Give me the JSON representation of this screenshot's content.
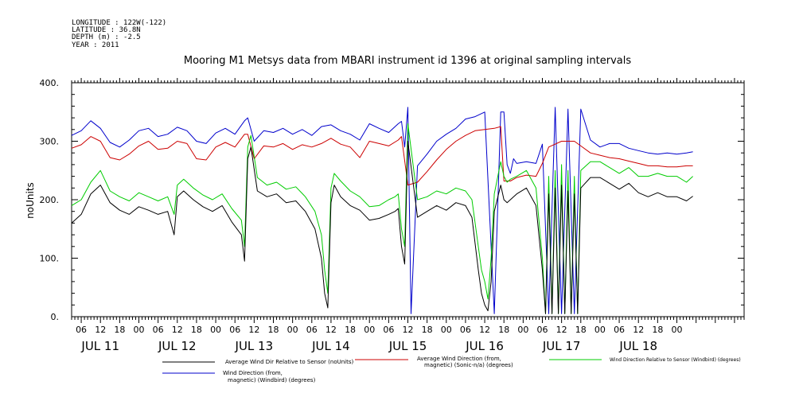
{
  "header": {
    "meta": [
      "LONGITUDE : 122W(-122)",
      "LATITUDE : 36.8N",
      "DEPTH (m) : -2.5",
      "YEAR : 2011"
    ],
    "title": "Mooring M1 Metsys data from MBARI instrument id 1396 at original sampling intervals"
  },
  "chart_data": {
    "type": "line",
    "title": "Mooring M1 Metsys data from MBARI instrument id 1396 at original sampling intervals",
    "ylabel": "noUnits",
    "ylim": [
      0,
      400
    ],
    "yticks": [
      "0.",
      "100.",
      "200.",
      "300.",
      "400."
    ],
    "xlim": [
      3,
      213
    ],
    "x_hour_ticks": [
      {
        "x": 6,
        "label": "06"
      },
      {
        "x": 12,
        "label": "12"
      },
      {
        "x": 18,
        "label": "18"
      },
      {
        "x": 24,
        "label": "00"
      },
      {
        "x": 30,
        "label": "06"
      },
      {
        "x": 36,
        "label": "12"
      },
      {
        "x": 42,
        "label": "18"
      },
      {
        "x": 48,
        "label": "00"
      },
      {
        "x": 54,
        "label": "06"
      },
      {
        "x": 60,
        "label": "12"
      },
      {
        "x": 66,
        "label": "18"
      },
      {
        "x": 72,
        "label": "00"
      },
      {
        "x": 78,
        "label": "06"
      },
      {
        "x": 84,
        "label": "12"
      },
      {
        "x": 90,
        "label": "18"
      },
      {
        "x": 96,
        "label": "00"
      },
      {
        "x": 102,
        "label": "06"
      },
      {
        "x": 108,
        "label": "12"
      },
      {
        "x": 114,
        "label": "18"
      },
      {
        "x": 120,
        "label": "00"
      },
      {
        "x": 126,
        "label": "06"
      },
      {
        "x": 132,
        "label": "12"
      },
      {
        "x": 138,
        "label": "18"
      },
      {
        "x": 144,
        "label": "00"
      },
      {
        "x": 150,
        "label": "06"
      },
      {
        "x": 156,
        "label": "12"
      },
      {
        "x": 162,
        "label": "18"
      },
      {
        "x": 168,
        "label": "00"
      },
      {
        "x": 174,
        "label": "06"
      },
      {
        "x": 180,
        "label": "12"
      },
      {
        "x": 186,
        "label": "18"
      },
      {
        "x": 192,
        "label": "00"
      }
    ],
    "x_day_labels": [
      {
        "x": 12,
        "label": "JUL 11"
      },
      {
        "x": 36,
        "label": "JUL 12"
      },
      {
        "x": 60,
        "label": "JUL 13"
      },
      {
        "x": 84,
        "label": "JUL 14"
      },
      {
        "x": 108,
        "label": "JUL 15"
      },
      {
        "x": 132,
        "label": "JUL 16"
      },
      {
        "x": 156,
        "label": "JUL 17"
      },
      {
        "x": 180,
        "label": "JUL 18"
      }
    ],
    "series": [
      {
        "name": "Wind Direction (from, magnetic) (Windbird) (degrees)",
        "color": "#0000cc",
        "x": [
          3,
          6,
          9,
          12,
          15,
          18,
          21,
          24,
          27,
          30,
          33,
          36,
          39,
          42,
          45,
          48,
          51,
          54,
          57,
          58,
          60,
          63,
          66,
          69,
          72,
          75,
          78,
          81,
          84,
          87,
          90,
          93,
          96,
          99,
          102,
          105,
          106,
          107,
          108,
          109,
          111,
          114,
          117,
          120,
          123,
          126,
          129,
          132,
          135,
          137,
          138,
          139,
          140,
          141,
          142,
          145,
          148,
          150,
          152,
          154,
          156,
          158,
          160,
          162,
          165,
          168,
          171,
          174,
          177,
          180,
          183,
          186,
          189,
          192,
          195,
          197
        ],
        "values": [
          310,
          318,
          335,
          322,
          298,
          290,
          302,
          318,
          322,
          308,
          312,
          324,
          318,
          300,
          296,
          314,
          322,
          312,
          335,
          340,
          300,
          318,
          315,
          322,
          312,
          320,
          310,
          325,
          328,
          318,
          312,
          302,
          330,
          322,
          315,
          330,
          334,
          290,
          358,
          5,
          258,
          278,
          300,
          312,
          322,
          338,
          342,
          350,
          5,
          350,
          350,
          260,
          245,
          270,
          262,
          265,
          262,
          295,
          5,
          358,
          5,
          355,
          5,
          355,
          302,
          290,
          296,
          296,
          288,
          284,
          280,
          278,
          280,
          278,
          280,
          282
        ]
      },
      {
        "name": "Average Wind Direction (from, magnetic) (Sonic-n/a) (degrees)",
        "color": "#cc0000",
        "x": [
          3,
          6,
          9,
          12,
          15,
          18,
          21,
          24,
          27,
          30,
          33,
          36,
          39,
          42,
          45,
          48,
          51,
          54,
          57,
          58,
          60,
          63,
          66,
          69,
          72,
          75,
          78,
          81,
          84,
          87,
          90,
          93,
          96,
          99,
          102,
          105,
          106,
          108,
          111,
          114,
          117,
          120,
          123,
          126,
          129,
          132,
          135,
          137,
          138,
          140,
          142,
          145,
          148,
          150,
          152,
          156,
          160,
          162,
          165,
          168,
          171,
          174,
          177,
          180,
          183,
          186,
          189,
          192,
          195,
          197
        ],
        "values": [
          288,
          294,
          308,
          300,
          272,
          268,
          278,
          292,
          300,
          286,
          288,
          300,
          296,
          270,
          268,
          290,
          298,
          290,
          312,
          312,
          270,
          292,
          290,
          296,
          286,
          294,
          290,
          296,
          305,
          295,
          290,
          272,
          300,
          296,
          292,
          302,
          308,
          225,
          230,
          248,
          268,
          286,
          300,
          310,
          318,
          320,
          322,
          325,
          232,
          232,
          238,
          242,
          240,
          262,
          290,
          300,
          300,
          292,
          280,
          276,
          272,
          270,
          266,
          262,
          258,
          258,
          256,
          256,
          258,
          258
        ]
      },
      {
        "name": "Wind Direction Relative to Sensor (Windbird) (degrees)",
        "color": "#00cc00",
        "x": [
          3,
          6,
          9,
          12,
          15,
          18,
          21,
          24,
          27,
          30,
          33,
          35,
          36,
          38,
          41,
          44,
          47,
          50,
          53,
          56,
          57,
          58,
          59,
          61,
          64,
          67,
          70,
          73,
          76,
          79,
          81,
          82,
          83,
          84,
          85,
          87,
          90,
          93,
          96,
          99,
          102,
          104,
          105,
          106,
          107,
          108,
          111,
          114,
          117,
          120,
          123,
          126,
          128,
          130,
          131,
          132,
          133,
          134,
          135,
          137,
          138,
          139,
          140,
          142,
          145,
          148,
          150,
          151,
          152,
          153,
          154,
          155,
          156,
          157,
          158,
          159,
          160,
          161,
          162,
          165,
          168,
          171,
          174,
          177,
          180,
          183,
          186,
          189,
          192,
          195,
          197
        ],
        "values": [
          190,
          200,
          230,
          250,
          215,
          205,
          198,
          212,
          205,
          198,
          205,
          175,
          225,
          235,
          220,
          208,
          200,
          210,
          185,
          165,
          120,
          290,
          310,
          238,
          225,
          230,
          218,
          222,
          205,
          180,
          140,
          80,
          40,
          220,
          245,
          232,
          215,
          205,
          188,
          190,
          200,
          205,
          210,
          150,
          120,
          330,
          200,
          205,
          215,
          210,
          220,
          215,
          200,
          120,
          80,
          60,
          30,
          100,
          210,
          265,
          240,
          230,
          235,
          240,
          250,
          220,
          100,
          5,
          240,
          5,
          250,
          5,
          260,
          5,
          250,
          5,
          240,
          5,
          250,
          265,
          265,
          255,
          245,
          255,
          240,
          240,
          245,
          240,
          240,
          230,
          240
        ]
      },
      {
        "name": "Average Wind Dir Relative to Sensor (noUnits)",
        "color": "#000000",
        "x": [
          3,
          6,
          9,
          12,
          15,
          18,
          21,
          24,
          27,
          30,
          33,
          35,
          36,
          38,
          41,
          44,
          47,
          50,
          53,
          56,
          57,
          58,
          59,
          61,
          64,
          67,
          70,
          73,
          76,
          79,
          81,
          82,
          83,
          84,
          85,
          87,
          90,
          93,
          96,
          99,
          102,
          104,
          105,
          106,
          107,
          108,
          111,
          114,
          117,
          120,
          123,
          126,
          128,
          130,
          131,
          132,
          133,
          134,
          135,
          137,
          138,
          139,
          140,
          142,
          145,
          148,
          150,
          151,
          152,
          153,
          154,
          155,
          156,
          157,
          158,
          159,
          160,
          161,
          162,
          165,
          168,
          171,
          174,
          177,
          180,
          183,
          186,
          189,
          192,
          195,
          197
        ],
        "values": [
          160,
          175,
          210,
          225,
          195,
          182,
          175,
          188,
          182,
          175,
          180,
          140,
          205,
          215,
          200,
          188,
          180,
          190,
          162,
          140,
          95,
          270,
          290,
          215,
          205,
          210,
          195,
          198,
          180,
          150,
          100,
          40,
          15,
          195,
          225,
          205,
          190,
          182,
          165,
          168,
          175,
          180,
          185,
          120,
          90,
          300,
          170,
          180,
          190,
          182,
          195,
          190,
          170,
          80,
          40,
          20,
          10,
          60,
          180,
          225,
          200,
          195,
          200,
          210,
          220,
          190,
          80,
          5,
          210,
          5,
          220,
          5,
          225,
          5,
          215,
          5,
          210,
          5,
          220,
          238,
          238,
          228,
          218,
          228,
          212,
          205,
          212,
          205,
          205,
          198,
          206
        ]
      }
    ],
    "legend": [
      {
        "label": "Average Wind Dir Relative to Sensor (noUnits)",
        "color": "#000000"
      },
      {
        "label": "Average Wind Direction (from, magnetic) (Sonic-n/a) (degrees)",
        "color": "#cc0000"
      },
      {
        "label": "Wind Direction Relative to Sensor (Windbird) (degrees)",
        "color": "#00cc00"
      },
      {
        "label": "Wind Direction (from, magnetic) (Windbird) (degrees)",
        "color": "#0000cc"
      }
    ]
  }
}
